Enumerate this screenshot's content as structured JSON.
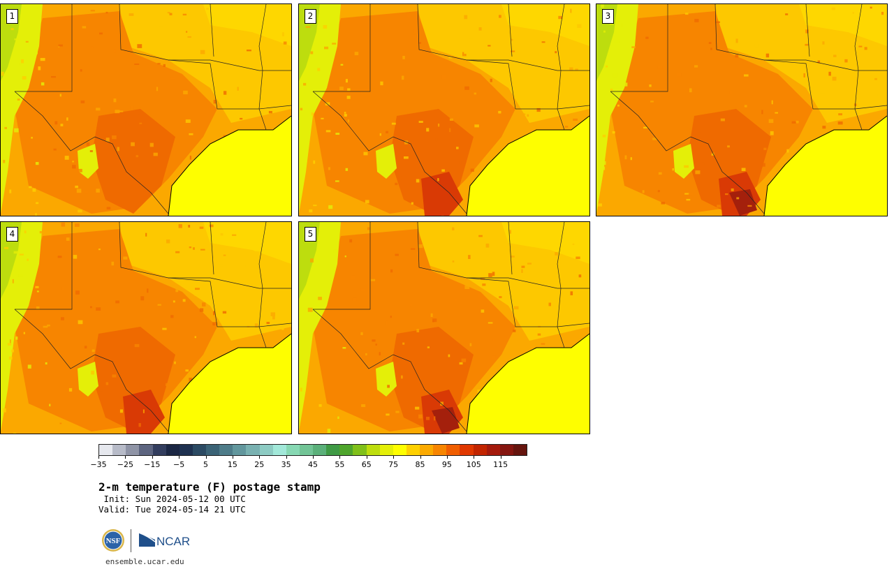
{
  "panels": [
    {
      "label": "1",
      "variant": 1
    },
    {
      "label": "2",
      "variant": 2
    },
    {
      "label": "3",
      "variant": 3
    },
    {
      "label": "4",
      "variant": 4
    },
    {
      "label": "5",
      "variant": 5
    }
  ],
  "colorbar": {
    "colors": [
      "#e6e8ee",
      "#b7bbc8",
      "#8f94a6",
      "#5d6580",
      "#323d5e",
      "#1b2744",
      "#1e3150",
      "#2b4a63",
      "#3b6376",
      "#4e7c89",
      "#62979d",
      "#79b1b1",
      "#8dcbc3",
      "#a2e8d9",
      "#87d8b3",
      "#72c496",
      "#5bb07a",
      "#3f9a45",
      "#4ea52c",
      "#80c01a",
      "#bddd0e",
      "#e4ef08",
      "#fefe00",
      "#fed000",
      "#fbaa00",
      "#f78500",
      "#f05e00",
      "#e03800",
      "#c22500",
      "#a41a0c",
      "#851610",
      "#66150e"
    ],
    "tick_labels": [
      "−35",
      "−25",
      "−15",
      "−5",
      "5",
      "15",
      "25",
      "35",
      "45",
      "55",
      "65",
      "75",
      "85",
      "95",
      "105",
      "115"
    ]
  },
  "title": "2-m temperature (F) postage stamp",
  "init_line": " Init: Sun 2024-05-12 00 UTC",
  "valid_line": "Valid: Tue 2024-05-14 21 UTC",
  "logos": {
    "nsf": "NSF",
    "ncar": "NCAR"
  },
  "url": "ensemble.ucar.edu"
}
